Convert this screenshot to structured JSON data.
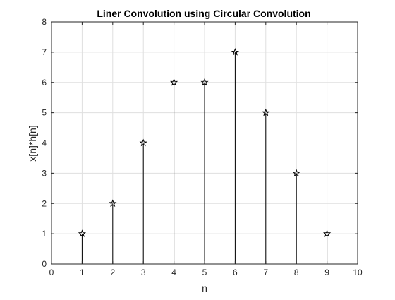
{
  "chart_data": {
    "type": "stem",
    "title": "Liner Convolution using Circular Convolution",
    "xlabel": "n",
    "ylabel": "x[n]*h[n]",
    "xlim": [
      0,
      10
    ],
    "ylim": [
      0,
      8
    ],
    "xticks": [
      "0",
      "1",
      "2",
      "3",
      "4",
      "5",
      "6",
      "7",
      "8",
      "9",
      "10"
    ],
    "yticks": [
      "0",
      "1",
      "2",
      "3",
      "4",
      "5",
      "6",
      "7",
      "8"
    ],
    "grid": true,
    "marker": "pentagram",
    "x": [
      1,
      2,
      3,
      4,
      5,
      6,
      7,
      8,
      9
    ],
    "values": [
      1,
      2,
      4,
      6,
      6,
      7,
      5,
      3,
      1
    ],
    "colors": {
      "stem": "#000000",
      "axes": "#262626",
      "grid": "#dfdfdf",
      "background": "#ffffff"
    }
  }
}
